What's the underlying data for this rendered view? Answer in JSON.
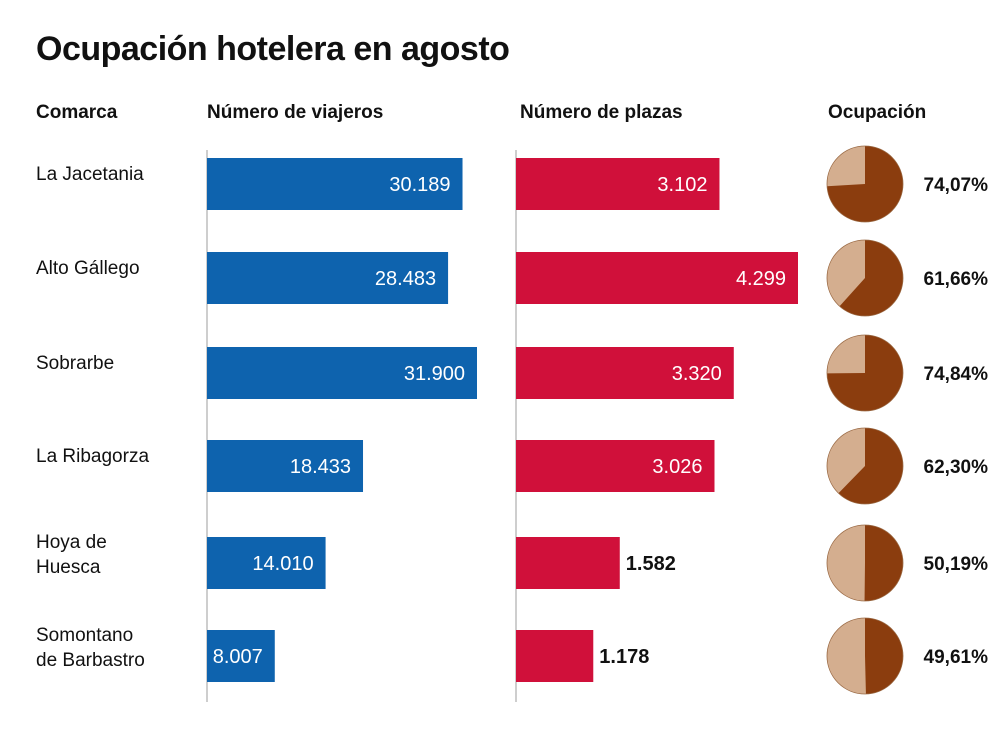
{
  "title": "Ocupación hotelera en agosto",
  "headers": {
    "comarca": "Comarca",
    "viajeros": "Número de viajeros",
    "plazas": "Número de plazas",
    "ocupacion": "Ocupación"
  },
  "colors": {
    "viajeros": "#0e63ae",
    "plazas": "#d0103a",
    "pie_dark": "#8b3d0e",
    "pie_light": "#d4ae8f",
    "axis": "#bdbdbd"
  },
  "chart_data": [
    {
      "type": "bar",
      "orientation": "horizontal",
      "title": "Número de viajeros",
      "categories": [
        [
          "La Jacetania"
        ],
        [
          "Alto Gállego"
        ],
        [
          "Sobrarbe"
        ],
        [
          "La Ribagorza"
        ],
        [
          "Hoya de",
          "Huesca"
        ],
        [
          "Somontano",
          "de Barbastro"
        ]
      ],
      "values": [
        30189,
        28483,
        31900,
        18433,
        14010,
        8007
      ],
      "labels": [
        "30.189",
        "28.483",
        "31.900",
        "18.433",
        "14.010",
        "8.007"
      ],
      "xlim": [
        0,
        32000
      ]
    },
    {
      "type": "bar",
      "orientation": "horizontal",
      "title": "Número de plazas",
      "categories": [
        [
          "La Jacetania"
        ],
        [
          "Alto Gállego"
        ],
        [
          "Sobrarbe"
        ],
        [
          "La Ribagorza"
        ],
        [
          "Hoya de",
          "Huesca"
        ],
        [
          "Somontano",
          "de Barbastro"
        ]
      ],
      "values": [
        3102,
        4299,
        3320,
        3026,
        1582,
        1178
      ],
      "labels": [
        "3.102",
        "4.299",
        "3.320",
        "3.026",
        "1.582",
        "1.178"
      ],
      "xlim": [
        0,
        4300
      ]
    },
    {
      "type": "pie",
      "title": "Ocupación",
      "categories": [
        [
          "La Jacetania"
        ],
        [
          "Alto Gállego"
        ],
        [
          "Sobrarbe"
        ],
        [
          "La Ribagorza"
        ],
        [
          "Hoya de",
          "Huesca"
        ],
        [
          "Somontano",
          "de Barbastro"
        ]
      ],
      "values": [
        74.07,
        61.66,
        74.84,
        62.3,
        50.19,
        49.61
      ],
      "labels": [
        "74,07%",
        "61,66%",
        "74,84%",
        "62,30%",
        "50,19%",
        "49,61%"
      ],
      "unit": "%"
    }
  ]
}
